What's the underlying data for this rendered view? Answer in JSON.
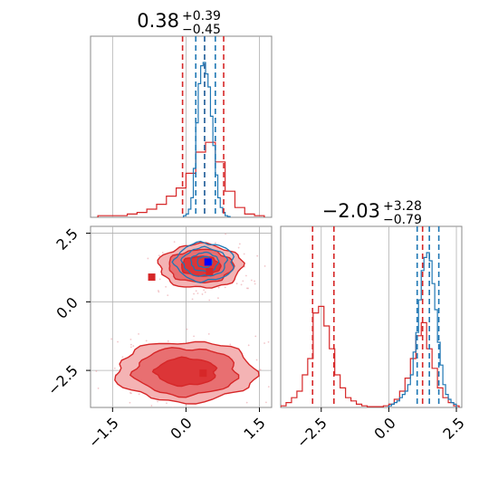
{
  "colors": {
    "red": "#d62728",
    "blue": "#1f77b4",
    "marker_blue": "#0000ff",
    "grid": "#b0b0b0",
    "fill_light": "#f4b3b4",
    "fill_mid": "#e86f71",
    "fill_dark": "#dc3537"
  },
  "chart_data": [
    {
      "panel": "marginal-x",
      "type": "histogram",
      "title": {
        "value": "0.38",
        "upper": "+0.39",
        "lower": "−0.45"
      },
      "xlim": [
        -1.95,
        1.75
      ],
      "grid": true,
      "quantile_lines": {
        "red": [
          -0.07,
          0.38,
          0.77
        ],
        "blue": [
          0.2,
          0.38,
          0.6
        ]
      },
      "series": [
        {
          "color": "red",
          "bin_edges": [
            -1.8,
            -1.6,
            -1.4,
            -1.2,
            -1.0,
            -0.8,
            -0.6,
            -0.4,
            -0.2,
            0.0,
            0.2,
            0.4,
            0.6,
            0.8,
            1.0,
            1.2,
            1.4,
            1.6
          ],
          "counts": [
            0.01,
            0.01,
            0.01,
            0.02,
            0.03,
            0.05,
            0.08,
            0.13,
            0.18,
            0.27,
            0.4,
            0.46,
            0.34,
            0.16,
            0.06,
            0.02,
            0.01
          ]
        },
        {
          "color": "blue",
          "bin_edges": [
            -0.05,
            0.0,
            0.05,
            0.1,
            0.15,
            0.2,
            0.25,
            0.3,
            0.35,
            0.4,
            0.45,
            0.5,
            0.55,
            0.6,
            0.65,
            0.7,
            0.75,
            0.8,
            0.85,
            0.9
          ],
          "counts": [
            0.01,
            0.02,
            0.05,
            0.12,
            0.3,
            0.58,
            0.82,
            0.93,
            0.95,
            0.88,
            0.8,
            0.62,
            0.44,
            0.26,
            0.12,
            0.06,
            0.03,
            0.01,
            0.005
          ]
        }
      ]
    },
    {
      "panel": "marginal-y",
      "type": "histogram",
      "title": {
        "value": "−2.03",
        "upper": "+3.28",
        "lower": "−0.79"
      },
      "xlim": [
        -4.0,
        2.7
      ],
      "xticks": [
        "−2.5",
        "0.0",
        "2.5"
      ],
      "grid": true,
      "quantile_lines": {
        "red": [
          -2.82,
          -2.03,
          1.25
        ],
        "blue": [
          1.05,
          1.5,
          1.85
        ]
      },
      "series": [
        {
          "color": "red",
          "bin_edges": [
            -4.0,
            -3.8,
            -3.6,
            -3.4,
            -3.2,
            -3.0,
            -2.8,
            -2.6,
            -2.4,
            -2.2,
            -2.0,
            -1.8,
            -1.6,
            -1.4,
            -1.2,
            -1.0,
            -0.8,
            -0.6,
            -0.4,
            -0.2,
            0.0,
            0.2,
            0.4,
            0.6,
            0.8,
            1.0,
            1.2,
            1.4,
            1.6,
            1.8,
            2.0,
            2.2,
            2.4,
            2.6
          ],
          "counts": [
            0.01,
            0.03,
            0.06,
            0.1,
            0.2,
            0.3,
            0.58,
            0.62,
            0.5,
            0.36,
            0.2,
            0.12,
            0.06,
            0.04,
            0.02,
            0.01,
            0.005,
            0.005,
            0.005,
            0.01,
            0.02,
            0.05,
            0.1,
            0.18,
            0.3,
            0.44,
            0.52,
            0.36,
            0.24,
            0.12,
            0.06,
            0.03,
            0.01
          ]
        },
        {
          "color": "blue",
          "bin_edges": [
            0.0,
            0.1,
            0.2,
            0.3,
            0.4,
            0.5,
            0.6,
            0.7,
            0.8,
            0.9,
            1.0,
            1.1,
            1.2,
            1.3,
            1.4,
            1.5,
            1.6,
            1.7,
            1.8,
            1.9,
            2.0,
            2.1,
            2.2,
            2.3,
            2.4,
            2.5
          ],
          "counts": [
            0.01,
            0.02,
            0.03,
            0.04,
            0.06,
            0.08,
            0.1,
            0.14,
            0.2,
            0.34,
            0.46,
            0.66,
            0.84,
            0.92,
            0.95,
            0.9,
            0.76,
            0.6,
            0.4,
            0.26,
            0.14,
            0.08,
            0.05,
            0.03,
            0.02
          ]
        }
      ]
    },
    {
      "panel": "joint",
      "type": "contour",
      "xlim": [
        -1.95,
        1.75
      ],
      "ylim": [
        -3.85,
        2.75
      ],
      "xticks": [
        "−1.5",
        "0.0",
        "1.5"
      ],
      "yticks": [
        "2.5",
        "0.0",
        "−2.5"
      ],
      "grid": true,
      "red_contours": {
        "modes": [
          {
            "center": [
              0.3,
              1.3
            ],
            "levels": [
              {
                "rx": 0.85,
                "ry": 0.8
              },
              {
                "rx": 0.66,
                "ry": 0.6
              },
              {
                "rx": 0.4,
                "ry": 0.36
              }
            ]
          },
          {
            "center": [
              0.0,
              -2.55
            ],
            "levels": [
              {
                "rx": 1.42,
                "ry": 1.1
              },
              {
                "rx": 1.05,
                "ry": 0.86
              },
              {
                "rx": 0.62,
                "ry": 0.5
              }
            ]
          }
        ]
      },
      "blue_contours": {
        "center": [
          0.38,
          1.45
        ],
        "levels": [
          {
            "rx": 0.6,
            "ry": 0.7
          },
          {
            "rx": 0.45,
            "ry": 0.52
          },
          {
            "rx": 0.28,
            "ry": 0.34
          },
          {
            "rx": 0.15,
            "ry": 0.2
          }
        ]
      },
      "markers": [
        {
          "color": "red",
          "x": -0.7,
          "y": 0.9
        },
        {
          "color": "red",
          "x": 0.48,
          "y": 1.1
        },
        {
          "color": "red",
          "x": 0.35,
          "y": -2.6
        },
        {
          "color": "marker_blue",
          "x": 0.45,
          "y": 1.45
        }
      ]
    }
  ]
}
